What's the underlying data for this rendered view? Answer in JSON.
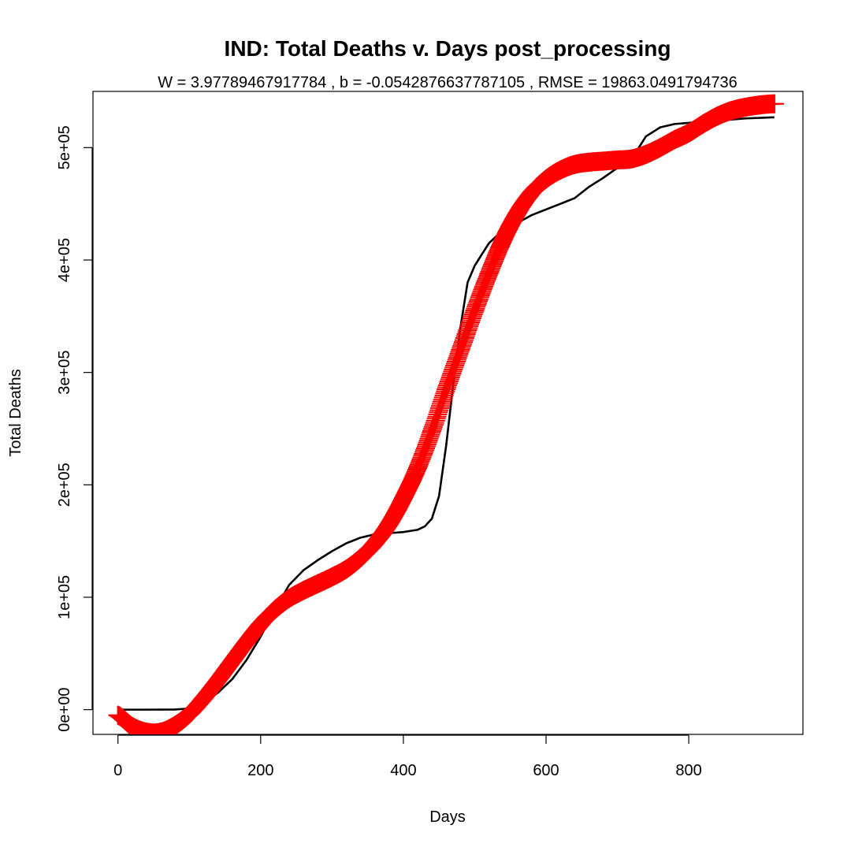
{
  "chart_data": {
    "type": "line",
    "title": "IND: Total Deaths v. Days post_processing",
    "subtitle": "W = 3.97789467917784 , b = -0.0542876637787105 , RMSE = 19863.0491794736",
    "xlabel": "Days",
    "ylabel": "Total Deaths",
    "xlim": [
      -35,
      960
    ],
    "ylim": [
      -22000,
      550000
    ],
    "x_ticks": [
      0,
      200,
      400,
      600,
      800
    ],
    "x_tick_labels": [
      "0",
      "200",
      "400",
      "600",
      "800"
    ],
    "y_ticks": [
      0,
      100000,
      200000,
      300000,
      400000,
      500000
    ],
    "y_tick_labels": [
      "0e+00",
      "1e+05",
      "2e+05",
      "3e+05",
      "4e+05",
      "5e+05"
    ],
    "grid": false,
    "series": [
      {
        "style": "line",
        "color": "#000000",
        "x": [
          0,
          40,
          80,
          100,
          120,
          140,
          160,
          180,
          200,
          220,
          240,
          260,
          280,
          300,
          320,
          340,
          360,
          380,
          400,
          420,
          430,
          440,
          450,
          460,
          470,
          480,
          490,
          500,
          510,
          520,
          530,
          540,
          560,
          580,
          600,
          620,
          640,
          660,
          680,
          700,
          720,
          730,
          740,
          760,
          780,
          800,
          820,
          840,
          860,
          880,
          900,
          920
        ],
        "y": [
          0,
          0,
          100,
          1000,
          6000,
          15000,
          27000,
          44000,
          65000,
          89000,
          111000,
          124000,
          133000,
          141000,
          148000,
          153000,
          156000,
          157000,
          158000,
          160000,
          163000,
          170000,
          190000,
          235000,
          290000,
          340000,
          380000,
          395000,
          405000,
          415000,
          421000,
          425000,
          433000,
          440000,
          445000,
          450000,
          455000,
          465000,
          473000,
          482000,
          490000,
          500000,
          510000,
          518000,
          521000,
          522000,
          523000,
          524000,
          525000,
          526000,
          526500,
          527000
        ]
      },
      {
        "style": "plus",
        "color": "#ff0000",
        "x": [
          0,
          20,
          40,
          60,
          80,
          100,
          120,
          140,
          160,
          180,
          200,
          220,
          240,
          260,
          280,
          300,
          320,
          340,
          360,
          380,
          400,
          420,
          440,
          460,
          480,
          500,
          520,
          540,
          560,
          580,
          600,
          620,
          640,
          660,
          680,
          700,
          720,
          740,
          760,
          780,
          800,
          820,
          840,
          860,
          880,
          900,
          920
        ],
        "y": [
          -5000,
          -15000,
          -20000,
          -20000,
          -14000,
          -4000,
          10000,
          26000,
          43000,
          60000,
          76000,
          89000,
          99000,
          106000,
          112000,
          118000,
          125000,
          135000,
          148000,
          165000,
          188000,
          215000,
          248000,
          285000,
          320000,
          355000,
          388000,
          418000,
          442000,
          460000,
          472000,
          480000,
          485000,
          487000,
          488000,
          489000,
          490000,
          494000,
          500000,
          507000,
          513000,
          521000,
          528000,
          533000,
          536000,
          538000,
          539000
        ]
      }
    ]
  }
}
